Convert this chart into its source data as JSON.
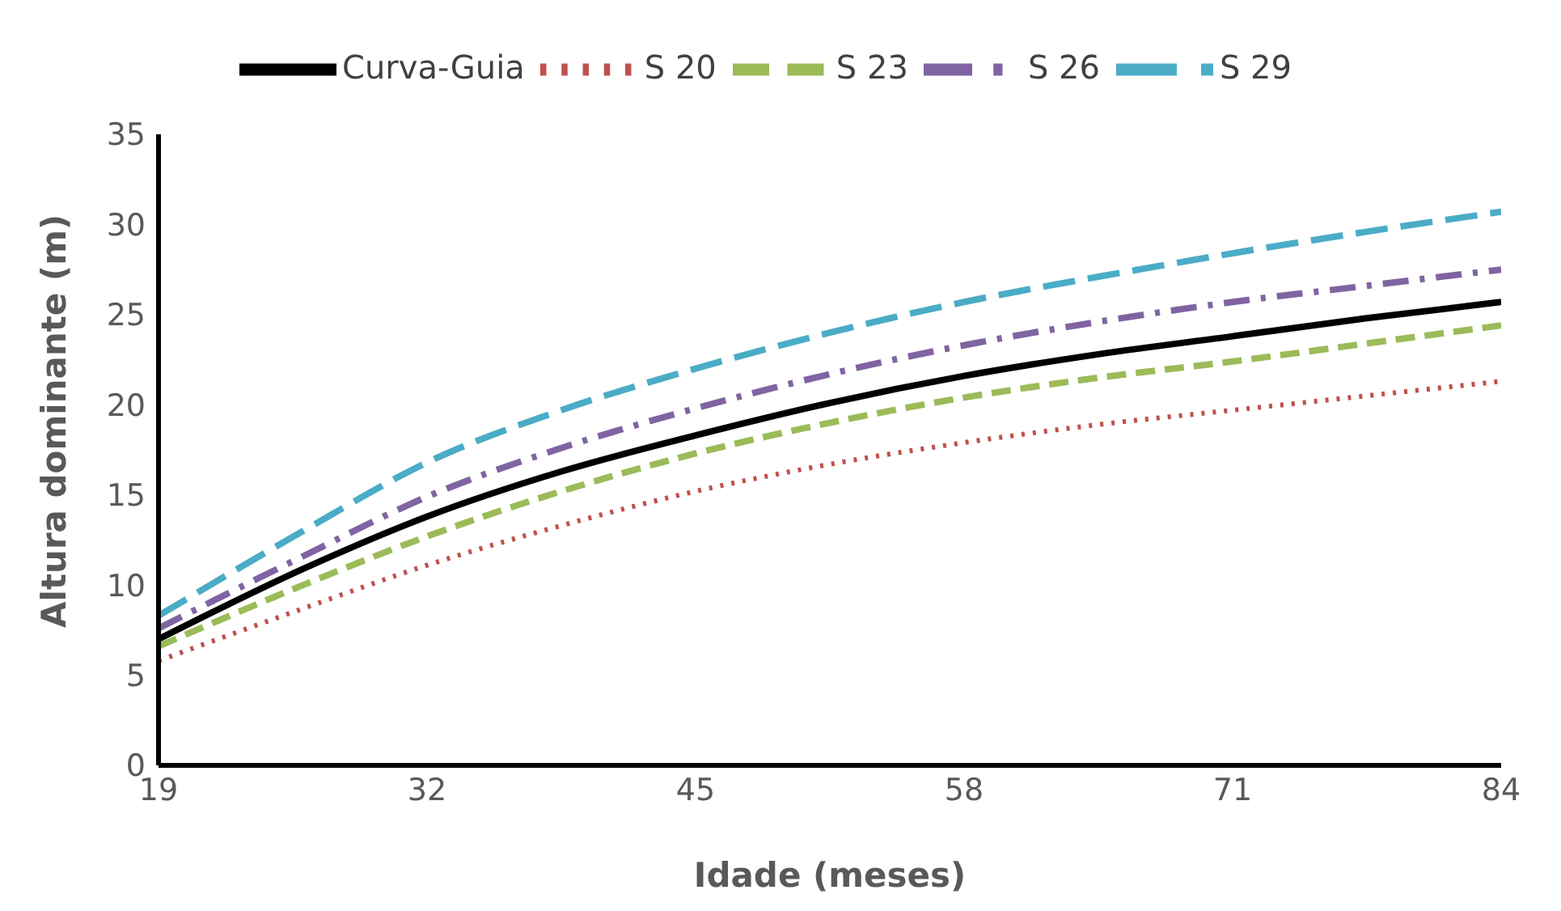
{
  "chart_data": {
    "type": "line",
    "xlabel": "Idade (meses)",
    "ylabel": "Altura dominante (m)",
    "x": [
      19,
      26,
      32,
      38.5,
      45,
      51.5,
      58,
      64.5,
      71,
      77.5,
      84
    ],
    "xlim": [
      19,
      84
    ],
    "xticks": [
      19,
      32,
      45,
      58,
      71,
      84
    ],
    "ylim": [
      0,
      35
    ],
    "yticks": [
      0,
      5,
      10,
      15,
      20,
      25,
      30,
      35
    ],
    "grid": false,
    "legend": "top",
    "marker": "none",
    "series": [
      {
        "name": "Curva-Guia",
        "color": "#000000",
        "line_style": "solid",
        "values": [
          7.0,
          10.9,
          13.8,
          16.3,
          18.3,
          20.1,
          21.6,
          22.8,
          23.8,
          24.8,
          25.7
        ]
      },
      {
        "name": "S 20",
        "color": "#c0504d",
        "line_style": "dotted",
        "values": [
          5.8,
          8.7,
          11.1,
          13.3,
          15.2,
          16.7,
          17.9,
          18.9,
          19.7,
          20.5,
          21.3
        ]
      },
      {
        "name": "S 23",
        "color": "#9bbb59",
        "line_style": "dashed",
        "values": [
          6.6,
          10.0,
          12.7,
          15.2,
          17.3,
          19.0,
          20.4,
          21.5,
          22.4,
          23.4,
          24.4
        ]
      },
      {
        "name": "S 26",
        "color": "#8064a2",
        "line_style": "dashdot",
        "values": [
          7.6,
          11.6,
          14.9,
          17.6,
          19.8,
          21.7,
          23.3,
          24.6,
          25.7,
          26.6,
          27.5
        ]
      },
      {
        "name": "S 29",
        "color": "#4bacc6",
        "line_style": "longdash",
        "values": [
          8.3,
          13.0,
          16.8,
          19.7,
          22.0,
          24.0,
          25.7,
          27.1,
          28.4,
          29.6,
          30.7
        ]
      }
    ]
  }
}
